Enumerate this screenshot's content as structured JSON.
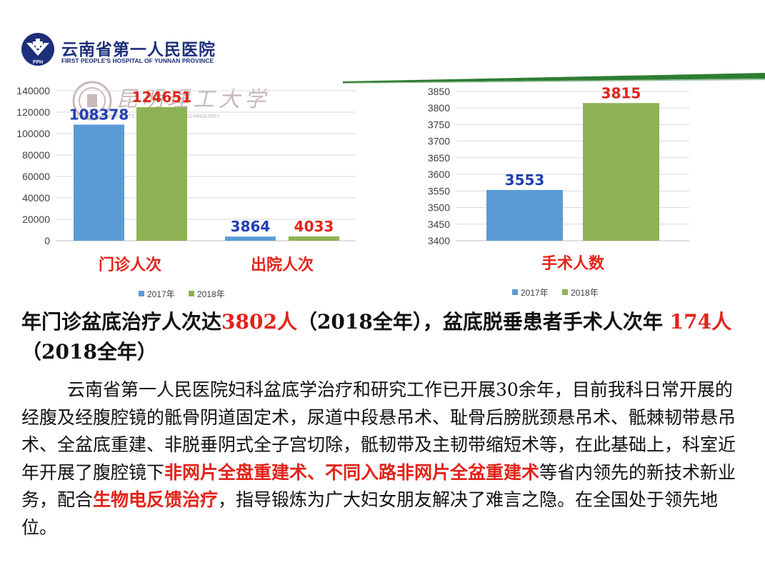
{
  "colors": {
    "series_2017": "#5b9bd5",
    "series_2018": "#8db255",
    "label_2017": "#1f3fb5",
    "label_2018": "#e2231a",
    "category_label": "#e2231a",
    "header_band": "#2e7d32",
    "brand_blue": "#1d2f7a"
  },
  "logo": {
    "name_cn": "云南省第一人民医院",
    "name_en": "FIRST PEOPLE'S HOSPITAL OF YUNNAN PROVINCE",
    "mark_text": "FPH"
  },
  "watermark": {
    "name_cn": "昆明理工大学",
    "name_en": "KUNMING UNIVERSITY OF SCIENCE AND TECHNOLOGY"
  },
  "chart_data": [
    {
      "type": "bar",
      "categories": [
        "门诊人次",
        "出院人次"
      ],
      "series": [
        {
          "name": "2017年",
          "values": [
            108378,
            3864
          ]
        },
        {
          "name": "2018年",
          "values": [
            124651,
            4033
          ]
        }
      ],
      "ylim": [
        0,
        140000
      ],
      "yticks": [
        0,
        20000,
        40000,
        60000,
        80000,
        100000,
        120000,
        140000
      ],
      "grid": true,
      "legend": "bottom"
    },
    {
      "type": "bar",
      "categories": [
        "手术人数"
      ],
      "series": [
        {
          "name": "2017年",
          "values": [
            3553
          ]
        },
        {
          "name": "2018年",
          "values": [
            3815
          ]
        }
      ],
      "ylim": [
        3400,
        3850
      ],
      "yticks": [
        3400,
        3450,
        3500,
        3550,
        3600,
        3650,
        3700,
        3750,
        3800,
        3850
      ],
      "grid": true,
      "legend": "bottom"
    }
  ],
  "heading": {
    "part1": "年门诊盆底治疗人次达",
    "num1": "3802人",
    "part2": "（2018全年），盆底脱垂患者手术人次年 ",
    "num2": "174人",
    "part3": "（2018全年）"
  },
  "body": {
    "p1": "云南省第一人民医院妇科盆底学治疗和研究工作已开展30余年，目前我科日常开展的经腹及经腹腔镜的骶骨阴道固定术，尿道中段悬吊术、耻骨后膀胱颈悬吊术、骶棘韧带悬吊术、全盆底重建、非脱垂阴式全子宫切除，骶韧带及主韧带缩短术等，在此基础上，科室近年开展了腹腔镜下",
    "hl1": "非网片全盘重建术、不同入路非网片全盆重建术",
    "p2": "等省内领先的新技术新业务，配合",
    "hl2": "生物电反馈治疗",
    "p3": "，指导锻炼为广大妇女朋友解决了难言之隐。在全国处于领先地位。"
  }
}
